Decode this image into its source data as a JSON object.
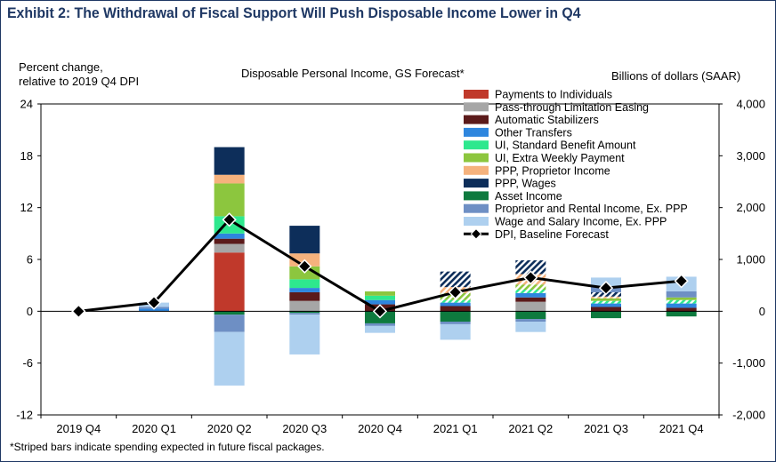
{
  "title": "Exhibit 2: The Withdrawal of Fiscal Support Will Push Disposable Income Lower in Q4",
  "ylabel_left_line1": "Percent change,",
  "ylabel_left_line2": "relative to 2019 Q4 DPI",
  "subtitle": "Disposable Personal Income, GS Forecast*",
  "ylabel_right": "Billions of dollars (SAAR)",
  "footnote": "*Striped bars indicate spending expected in future fiscal packages.",
  "chart_data": {
    "type": "bar",
    "stacked": true,
    "categories": [
      "2019 Q4",
      "2020 Q1",
      "2020 Q2",
      "2020 Q3",
      "2020 Q4",
      "2021 Q1",
      "2021 Q2",
      "2021 Q3",
      "2021 Q4"
    ],
    "ylim_left": [
      -12,
      24
    ],
    "yticks_left": [
      -12,
      -6,
      0,
      6,
      12,
      18,
      24
    ],
    "ylim_right": [
      -2000,
      4000
    ],
    "yticks_right": [
      "-2,000",
      "-1,000",
      "0",
      "1,000",
      "2,000",
      "3,000",
      "4,000"
    ],
    "legend_position": "top-right",
    "series": [
      {
        "name": "Payments to Individuals",
        "color": "#c0392b",
        "values": [
          0,
          0,
          6.8,
          0,
          0,
          0,
          0,
          0,
          0
        ],
        "striped": [
          false,
          false,
          false,
          false,
          false,
          false,
          false,
          false,
          false
        ]
      },
      {
        "name": "Pass-through Limitation Easing",
        "color": "#a6a6a6",
        "values": [
          0,
          0,
          1.0,
          1.2,
          0,
          0,
          1.1,
          0,
          0
        ],
        "striped": [
          false,
          false,
          false,
          false,
          false,
          false,
          false,
          false,
          false
        ]
      },
      {
        "name": "Automatic Stabilizers",
        "color": "#5b1a1a",
        "values": [
          0,
          0,
          0.6,
          1.0,
          0.8,
          0.6,
          0.5,
          0.5,
          0.4
        ],
        "striped": [
          false,
          false,
          false,
          false,
          false,
          false,
          false,
          false,
          false
        ]
      },
      {
        "name": "Other Transfers",
        "color": "#2e86de",
        "values": [
          0,
          0.3,
          0.6,
          0.5,
          0.5,
          0.4,
          0.5,
          0.4,
          0.5
        ],
        "striped": [
          false,
          false,
          false,
          false,
          false,
          false,
          false,
          false,
          false
        ]
      },
      {
        "name": "UI, Standard Benefit Amount",
        "color": "#2ee88e",
        "values": [
          0,
          0,
          2.0,
          1.0,
          0.5,
          0.3,
          0.4,
          0.3,
          0.4
        ],
        "striped": [
          false,
          false,
          false,
          false,
          false,
          true,
          true,
          true,
          true
        ]
      },
      {
        "name": "UI, Extra Weekly Payment",
        "color": "#8cc63e",
        "values": [
          0,
          0,
          3.8,
          1.5,
          0.5,
          0.8,
          0.6,
          0.3,
          0.3
        ],
        "striped": [
          false,
          false,
          false,
          false,
          false,
          true,
          true,
          false,
          false
        ]
      },
      {
        "name": "PPP, Proprietor Income",
        "color": "#f5b27d",
        "values": [
          0,
          0,
          1.0,
          1.5,
          0,
          0.7,
          1.2,
          0.2,
          0
        ],
        "striped": [
          false,
          false,
          false,
          false,
          false,
          true,
          true,
          true,
          false
        ]
      },
      {
        "name": "PPP, Wages",
        "color": "#0d2e5a",
        "values": [
          0,
          0,
          3.2,
          3.2,
          0,
          1.8,
          1.6,
          0.5,
          0
        ],
        "striped": [
          false,
          false,
          false,
          false,
          false,
          true,
          true,
          true,
          false
        ]
      },
      {
        "name": "Asset Income",
        "color": "#0e7a3e",
        "values": [
          0,
          0,
          -0.4,
          -0.2,
          -1.4,
          -1.2,
          -0.9,
          -0.8,
          -0.6
        ],
        "striped": [
          false,
          false,
          false,
          false,
          false,
          false,
          false,
          false,
          false
        ]
      },
      {
        "name": "Proprietor and Rental Income, Ex. PPP",
        "color": "#6e8fc4",
        "values": [
          0,
          0.2,
          -2.0,
          -0.2,
          -0.3,
          -0.3,
          -0.3,
          0.7,
          0.7
        ],
        "striped": [
          false,
          false,
          false,
          false,
          false,
          false,
          false,
          false,
          false
        ]
      },
      {
        "name": "Wage and Salary Income, Ex. PPP",
        "color": "#aed0ef",
        "values": [
          0,
          0.5,
          -6.2,
          -4.6,
          -0.8,
          -1.8,
          -1.2,
          1.0,
          1.7
        ],
        "striped": [
          false,
          false,
          false,
          false,
          false,
          false,
          false,
          false,
          false
        ]
      }
    ],
    "line_series": {
      "name": "DPI, Baseline Forecast",
      "color": "#000000",
      "values": [
        0,
        1.0,
        10.6,
        5.2,
        0,
        2.2,
        3.9,
        2.7,
        3.5
      ]
    }
  }
}
